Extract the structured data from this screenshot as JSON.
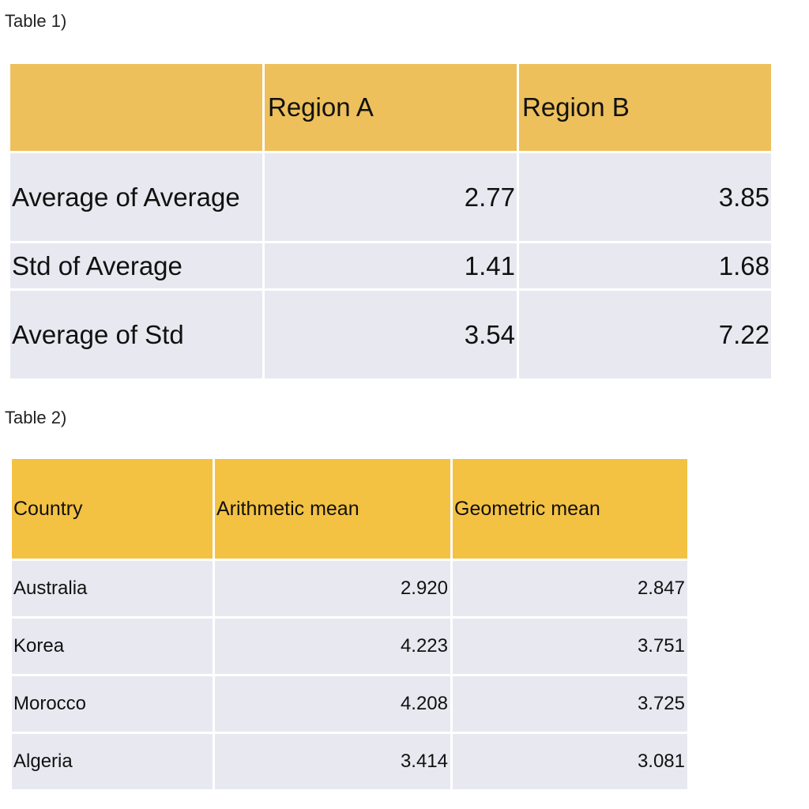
{
  "table1": {
    "caption": "Table 1)",
    "header": [
      "",
      "Region A",
      "Region B"
    ],
    "rows": [
      {
        "label": "Average of Average",
        "region_a": "2.77",
        "region_b": "3.85"
      },
      {
        "label": "Std of Average",
        "region_a": "1.41",
        "region_b": "1.68"
      },
      {
        "label": "Average of Std",
        "region_a": "3.54",
        "region_b": "7.22"
      }
    ]
  },
  "table2": {
    "caption": "Table 2)",
    "header": [
      "Country",
      "Arithmetic mean",
      "Geometric mean"
    ],
    "rows": [
      {
        "country": "Australia",
        "arithmetic": "2.920",
        "geometric": "2.847"
      },
      {
        "country": "Korea",
        "arithmetic": "4.223",
        "geometric": "3.751"
      },
      {
        "country": "Morocco",
        "arithmetic": "4.208",
        "geometric": "3.725"
      },
      {
        "country": "Algeria",
        "arithmetic": "3.414",
        "geometric": "3.081"
      }
    ]
  }
}
